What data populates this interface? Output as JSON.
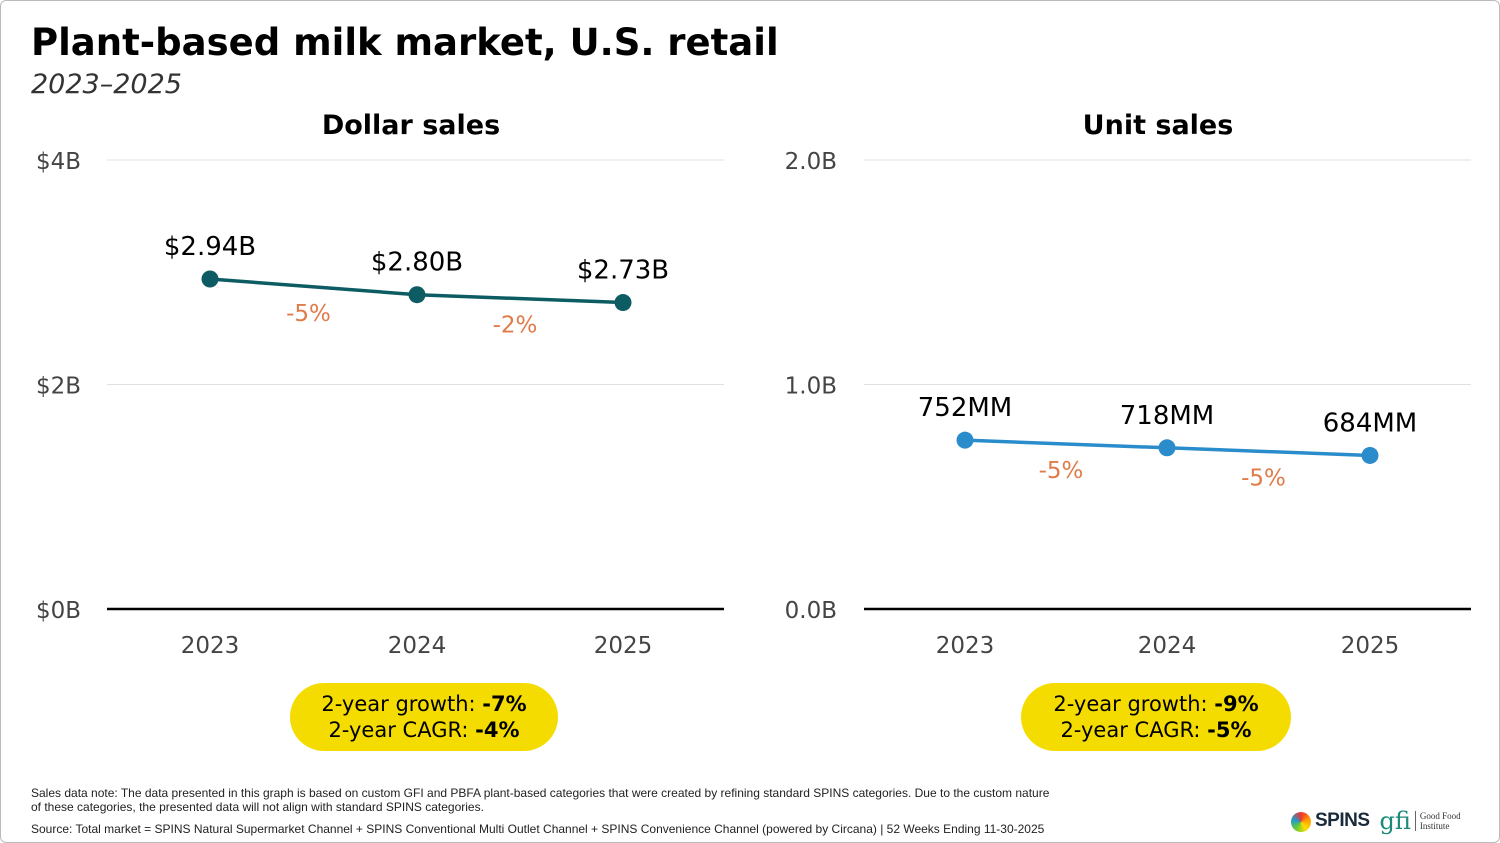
{
  "title": "Plant-based milk market, U.S. retail",
  "subtitle": "2023–2025",
  "colors": {
    "dollar_line": "#0d5c63",
    "unit_line": "#2b8ccc",
    "change_label": "#e07b4a",
    "highlight": "#f5dc00"
  },
  "chart_data": [
    {
      "type": "line",
      "title": "Dollar sales",
      "categories": [
        "2023",
        "2024",
        "2025"
      ],
      "values": [
        2.94,
        2.8,
        2.73
      ],
      "data_labels": [
        "$2.94B",
        "$2.80B",
        "$2.73B"
      ],
      "change_labels": [
        "-5%",
        "-2%"
      ],
      "ylim": [
        0,
        4
      ],
      "yticks": [
        0,
        2,
        4
      ],
      "ytick_labels": [
        "$0B",
        "$2B",
        "$4B"
      ],
      "grid": true,
      "summary": {
        "growth_label": "2-year growth: ",
        "growth": "-7%",
        "cagr_label": "2-year CAGR: ",
        "cagr": "-4%"
      }
    },
    {
      "type": "line",
      "title": "Unit sales",
      "categories": [
        "2023",
        "2024",
        "2025"
      ],
      "values": [
        0.752,
        0.718,
        0.684
      ],
      "data_labels": [
        "752MM",
        "718MM",
        "684MM"
      ],
      "change_labels": [
        "-5%",
        "-5%"
      ],
      "ylim": [
        0,
        2
      ],
      "yticks": [
        0,
        1,
        2
      ],
      "ytick_labels": [
        "0.0B",
        "1.0B",
        "2.0B"
      ],
      "grid": true,
      "summary": {
        "growth_label": "2-year growth: ",
        "growth": "-9%",
        "cagr_label": "2-year CAGR: ",
        "cagr": "-5%"
      }
    }
  ],
  "footer": {
    "note_line1": "Sales data note: The data presented in this graph is based on custom GFI and PBFA plant-based categories that were created by refining standard SPINS categories. Due to the custom nature",
    "note_line2": "of these categories, the presented data will not align with standard SPINS categories.",
    "source": "Source: Total market = SPINS Natural Supermarket Channel + SPINS Conventional Multi Outlet Channel + SPINS Convenience Channel (powered by Circana) | 52 Weeks Ending 11-30-2025",
    "logo_spins": "SPINS",
    "logo_gfi": "gfi",
    "logo_gfi_text": "Good Food Institute"
  }
}
